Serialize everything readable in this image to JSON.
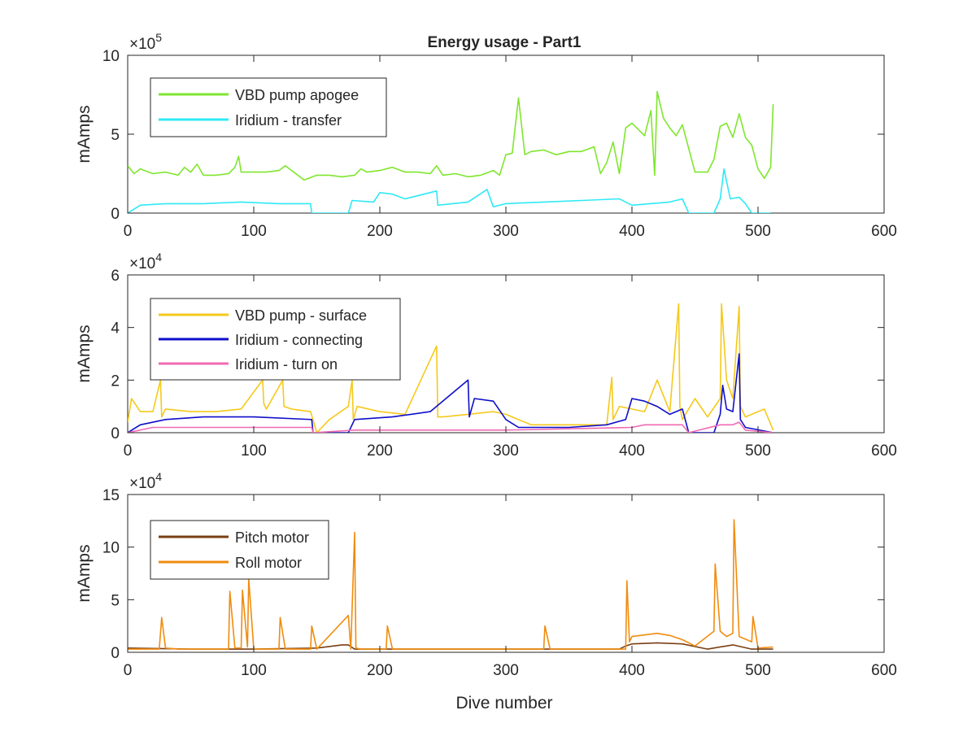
{
  "figure": {
    "title": "Energy usage - Part1",
    "xlabel": "Dive number"
  },
  "chart_data": [
    {
      "type": "line",
      "title": "Energy usage - Part1",
      "xlabel": "",
      "ylabel": "mAmps",
      "xlim": [
        0,
        600
      ],
      "ylim": [
        0,
        10
      ],
      "y_multiplier": "×10^5",
      "exponent_base": "×10",
      "exponent_power": "5",
      "xticks": [
        0,
        100,
        200,
        300,
        400,
        500,
        600
      ],
      "yticks": [
        0,
        5,
        10
      ],
      "grid": false,
      "legend": "top-left",
      "series": [
        {
          "name": "VBD pump apogee",
          "color": "#7fe62e",
          "x": [
            0,
            5,
            10,
            20,
            30,
            40,
            45,
            50,
            55,
            60,
            70,
            80,
            85,
            88,
            90,
            100,
            110,
            120,
            125,
            130,
            140,
            150,
            160,
            170,
            180,
            185,
            190,
            200,
            210,
            220,
            230,
            240,
            245,
            250,
            260,
            270,
            280,
            290,
            295,
            300,
            305,
            310,
            315,
            320,
            330,
            340,
            350,
            360,
            370,
            375,
            380,
            385,
            390,
            395,
            400,
            410,
            415,
            418,
            420,
            425,
            430,
            435,
            440,
            445,
            450,
            460,
            465,
            470,
            475,
            480,
            485,
            490,
            495,
            500,
            505,
            510,
            512
          ],
          "values": [
            3.0,
            2.5,
            2.8,
            2.5,
            2.6,
            2.4,
            2.9,
            2.6,
            3.1,
            2.4,
            2.4,
            2.5,
            2.9,
            3.6,
            2.6,
            2.6,
            2.6,
            2.7,
            3.0,
            2.7,
            2.1,
            2.4,
            2.4,
            2.3,
            2.4,
            2.8,
            2.6,
            2.7,
            2.9,
            2.6,
            2.6,
            2.5,
            3.0,
            2.4,
            2.5,
            2.3,
            2.4,
            2.7,
            2.4,
            3.7,
            3.8,
            7.3,
            3.7,
            3.9,
            4.0,
            3.7,
            3.9,
            3.9,
            4.2,
            2.5,
            3.2,
            4.5,
            2.5,
            5.4,
            5.7,
            4.9,
            6.5,
            2.4,
            7.7,
            6.0,
            5.4,
            4.9,
            5.6,
            4.1,
            2.6,
            2.6,
            3.4,
            5.5,
            5.7,
            4.8,
            6.3,
            4.8,
            4.3,
            2.8,
            2.2,
            2.9,
            6.9
          ]
        },
        {
          "name": "Iridium - transfer",
          "color": "#2ee9f5",
          "x": [
            0,
            10,
            30,
            60,
            90,
            120,
            145,
            146,
            175,
            178,
            195,
            200,
            210,
            220,
            245,
            246,
            270,
            285,
            290,
            300,
            330,
            360,
            390,
            400,
            430,
            440,
            445,
            465,
            470,
            473,
            478,
            485,
            490,
            495,
            510
          ],
          "values": [
            0.0,
            0.5,
            0.6,
            0.6,
            0.7,
            0.6,
            0.6,
            0.0,
            0.0,
            0.8,
            0.7,
            1.3,
            1.2,
            0.9,
            1.4,
            0.5,
            0.7,
            1.5,
            0.4,
            0.6,
            0.7,
            0.8,
            0.9,
            0.5,
            0.7,
            0.9,
            0.0,
            0.0,
            0.9,
            2.8,
            0.9,
            1.0,
            0.6,
            0.0,
            0.0
          ]
        }
      ]
    },
    {
      "type": "line",
      "title": "",
      "xlabel": "",
      "ylabel": "mAmps",
      "xlim": [
        0,
        600
      ],
      "ylim": [
        0,
        6
      ],
      "y_multiplier": "×10^4",
      "exponent_base": "×10",
      "exponent_power": "4",
      "xticks": [
        0,
        100,
        200,
        300,
        400,
        500,
        600
      ],
      "yticks": [
        0,
        2,
        4,
        6
      ],
      "grid": false,
      "legend": "top-left",
      "series": [
        {
          "name": "VBD pump - surface",
          "color": "#f5c91b",
          "x": [
            0,
            3,
            10,
            20,
            26,
            27,
            30,
            50,
            70,
            90,
            107,
            108,
            110,
            123,
            124,
            130,
            145,
            150,
            160,
            175,
            178,
            179,
            182,
            200,
            220,
            245,
            246,
            250,
            270,
            290,
            300,
            320,
            350,
            380,
            384,
            385,
            390,
            410,
            420,
            430,
            437,
            438,
            440,
            450,
            460,
            470,
            471,
            475,
            480,
            485,
            486,
            490,
            500,
            505,
            512
          ],
          "values": [
            0.4,
            1.3,
            0.8,
            0.8,
            2.0,
            0.6,
            0.9,
            0.8,
            0.8,
            0.9,
            2.0,
            1.1,
            0.9,
            2.0,
            1.0,
            0.9,
            0.8,
            0.0,
            0.5,
            1.0,
            2.0,
            0.5,
            1.0,
            0.8,
            0.7,
            3.3,
            0.6,
            0.6,
            0.7,
            0.8,
            0.7,
            0.3,
            0.3,
            0.3,
            2.1,
            0.5,
            1.0,
            0.8,
            2.0,
            0.8,
            4.9,
            1.0,
            0.5,
            1.3,
            0.6,
            1.3,
            4.9,
            2.0,
            1.3,
            4.8,
            1.0,
            0.6,
            0.8,
            0.9,
            0.1
          ]
        },
        {
          "name": "Iridium - connecting",
          "color": "#0e0ec9",
          "x": [
            0,
            10,
            30,
            60,
            100,
            146,
            147,
            175,
            180,
            210,
            240,
            270,
            271,
            275,
            290,
            300,
            310,
            350,
            380,
            395,
            400,
            410,
            420,
            430,
            440,
            445,
            465,
            470,
            472,
            475,
            480,
            485,
            486,
            490,
            512
          ],
          "values": [
            0.0,
            0.3,
            0.5,
            0.6,
            0.6,
            0.5,
            0.0,
            0.0,
            0.5,
            0.6,
            0.8,
            2.0,
            0.6,
            1.3,
            1.2,
            0.5,
            0.2,
            0.2,
            0.3,
            0.5,
            1.3,
            1.2,
            1.0,
            0.7,
            0.9,
            0.0,
            0.0,
            0.7,
            1.8,
            0.9,
            0.8,
            3.0,
            0.5,
            0.2,
            0.0
          ]
        },
        {
          "name": "Iridium - turn on",
          "color": "#f06bb4",
          "x": [
            0,
            20,
            60,
            100,
            146,
            147,
            180,
            250,
            300,
            400,
            410,
            440,
            445,
            470,
            480,
            485,
            490,
            512
          ],
          "values": [
            0.0,
            0.2,
            0.2,
            0.2,
            0.2,
            0.0,
            0.1,
            0.1,
            0.1,
            0.2,
            0.3,
            0.3,
            0.0,
            0.3,
            0.3,
            0.4,
            0.1,
            0.0
          ]
        }
      ]
    },
    {
      "type": "line",
      "title": "",
      "xlabel": "Dive number",
      "ylabel": "mAmps",
      "xlim": [
        0,
        600
      ],
      "ylim": [
        0,
        15
      ],
      "y_multiplier": "×10^4",
      "exponent_base": "×10",
      "exponent_power": "4",
      "xticks": [
        0,
        100,
        200,
        300,
        400,
        500,
        600
      ],
      "yticks": [
        0,
        5,
        10,
        15
      ],
      "grid": false,
      "legend": "top-left",
      "series": [
        {
          "name": "Pitch motor",
          "color": "#7a3f12",
          "x": [
            0,
            50,
            100,
            150,
            170,
            175,
            180,
            250,
            300,
            350,
            390,
            395,
            400,
            420,
            440,
            460,
            480,
            495,
            512
          ],
          "values": [
            0.4,
            0.3,
            0.3,
            0.4,
            0.7,
            0.7,
            0.3,
            0.3,
            0.3,
            0.3,
            0.3,
            0.6,
            0.8,
            0.9,
            0.8,
            0.3,
            0.7,
            0.3,
            0.3
          ]
        },
        {
          "name": "Roll motor",
          "color": "#f08c0f",
          "x": [
            0,
            25,
            27,
            30,
            40,
            80,
            81,
            85,
            90,
            91,
            95,
            96,
            100,
            120,
            121,
            125,
            145,
            146,
            150,
            175,
            177,
            180,
            181,
            185,
            205,
            206,
            210,
            245,
            250,
            300,
            330,
            331,
            335,
            395,
            396,
            398,
            400,
            420,
            430,
            440,
            450,
            465,
            466,
            470,
            475,
            480,
            481,
            485,
            495,
            496,
            500,
            512
          ],
          "values": [
            0.3,
            0.3,
            3.3,
            0.4,
            0.3,
            0.3,
            5.8,
            0.4,
            0.4,
            5.9,
            0.5,
            7.0,
            0.3,
            0.3,
            3.3,
            0.3,
            0.3,
            2.5,
            0.3,
            3.5,
            0.3,
            11.4,
            0.4,
            0.3,
            0.3,
            2.5,
            0.3,
            0.3,
            0.3,
            0.3,
            0.3,
            2.5,
            0.3,
            0.3,
            6.8,
            1.0,
            1.5,
            1.8,
            1.6,
            1.2,
            0.6,
            2.0,
            8.4,
            2.0,
            1.5,
            1.8,
            12.6,
            1.5,
            1.0,
            3.4,
            0.4,
            0.5
          ]
        }
      ]
    }
  ]
}
